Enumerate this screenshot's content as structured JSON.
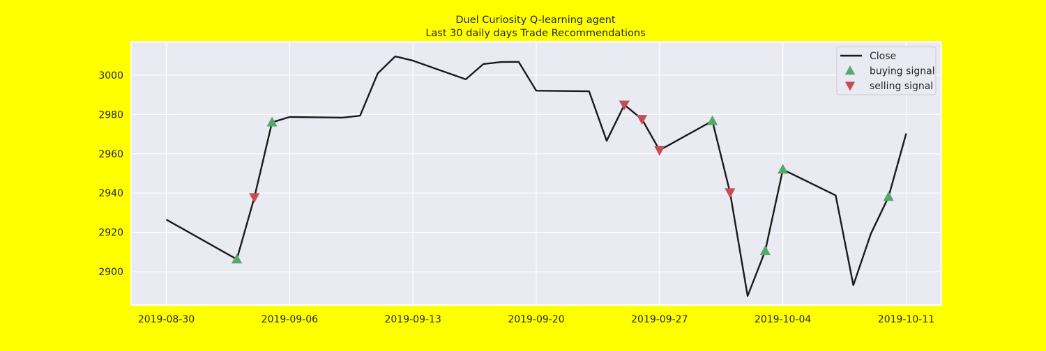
{
  "chart_data": {
    "type": "line",
    "title": "Duel Curiosity Q-learning agent",
    "subtitle": "Last 30 daily days Trade Recommendations",
    "xlabel": "",
    "ylabel": "",
    "x_axis_type": "date",
    "xlim": [
      "2019-08-28",
      "2019-10-13"
    ],
    "ylim": [
      2883,
      3017
    ],
    "x_ticks": [
      "2019-08-30",
      "2019-09-06",
      "2019-09-13",
      "2019-09-20",
      "2019-09-27",
      "2019-10-04",
      "2019-10-11"
    ],
    "y_ticks": [
      2900,
      2920,
      2940,
      2960,
      2980,
      3000
    ],
    "grid": true,
    "legend_position": "top-right",
    "background_color": "#eaeaf2",
    "figure_color": "#ffff00",
    "series": [
      {
        "name": "Close",
        "kind": "line",
        "color": "#1a1a1a",
        "x": [
          "2019-08-30",
          "2019-09-03",
          "2019-09-04",
          "2019-09-05",
          "2019-09-06",
          "2019-09-09",
          "2019-09-10",
          "2019-09-11",
          "2019-09-12",
          "2019-09-13",
          "2019-09-16",
          "2019-09-17",
          "2019-09-18",
          "2019-09-19",
          "2019-09-20",
          "2019-09-23",
          "2019-09-24",
          "2019-09-25",
          "2019-09-26",
          "2019-09-27",
          "2019-09-30",
          "2019-10-01",
          "2019-10-02",
          "2019-10-03",
          "2019-10-04",
          "2019-10-07",
          "2019-10-08",
          "2019-10-09",
          "2019-10-10",
          "2019-10-11"
        ],
        "y": [
          2926.5,
          2906.3,
          2937.8,
          2976.0,
          2978.7,
          2978.4,
          2979.4,
          3000.9,
          3009.6,
          3007.4,
          2997.9,
          3005.7,
          3006.7,
          3006.8,
          2992.1,
          2991.8,
          2966.6,
          2984.9,
          2977.6,
          2961.8,
          2976.7,
          2940.3,
          2887.6,
          2910.6,
          2952.0,
          2938.8,
          2893.1,
          2919.4,
          2938.1,
          2970.3
        ]
      },
      {
        "name": "buying signal",
        "kind": "marker",
        "marker": "triangle-up",
        "color": "#55a868",
        "x": [
          "2019-09-03",
          "2019-09-05",
          "2019-09-30",
          "2019-10-03",
          "2019-10-04",
          "2019-10-10"
        ],
        "y": [
          2906.3,
          2976.0,
          2976.7,
          2910.6,
          2952.0,
          2938.1
        ]
      },
      {
        "name": "selling signal",
        "kind": "marker",
        "marker": "triangle-down",
        "color": "#c44e52",
        "x": [
          "2019-09-04",
          "2019-09-25",
          "2019-09-26",
          "2019-09-27",
          "2019-10-01"
        ],
        "y": [
          2937.8,
          2984.9,
          2977.6,
          2961.8,
          2940.3
        ]
      }
    ]
  }
}
